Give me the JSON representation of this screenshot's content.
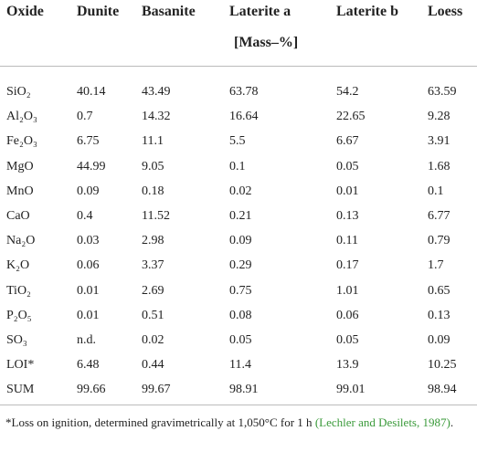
{
  "table": {
    "header": [
      "Oxide",
      "Dunite",
      "Basanite",
      "Laterite a",
      "Laterite b",
      "Loess"
    ],
    "unit": "[Mass–%]",
    "rows": [
      [
        "SiO₂",
        "40.14",
        "43.49",
        "63.78",
        "54.2",
        "63.59"
      ],
      [
        "Al₂O₃",
        "0.7",
        "14.32",
        "16.64",
        "22.65",
        "9.28"
      ],
      [
        "Fe₂O₃",
        "6.75",
        "11.1",
        "5.5",
        "6.67",
        "3.91"
      ],
      [
        "MgO",
        "44.99",
        "9.05",
        "0.1",
        "0.05",
        "1.68"
      ],
      [
        "MnO",
        "0.09",
        "0.18",
        "0.02",
        "0.01",
        "0.1"
      ],
      [
        "CaO",
        "0.4",
        "11.52",
        "0.21",
        "0.13",
        "6.77"
      ],
      [
        "Na₂O",
        "0.03",
        "2.98",
        "0.09",
        "0.11",
        "0.79"
      ],
      [
        "K₂O",
        "0.06",
        "3.37",
        "0.29",
        "0.17",
        "1.7"
      ],
      [
        "TiO₂",
        "0.01",
        "2.69",
        "0.75",
        "1.01",
        "0.65"
      ],
      [
        "P₂O₅",
        "0.01",
        "0.51",
        "0.08",
        "0.06",
        "0.13"
      ],
      [
        "SO₃",
        "n.d.",
        "0.02",
        "0.05",
        "0.05",
        "0.09"
      ],
      [
        "LOI*",
        "6.48",
        "0.44",
        "11.4",
        "13.9",
        "10.25"
      ],
      [
        "SUM",
        "99.66",
        "99.67",
        "98.91",
        "99.01",
        "98.94"
      ]
    ]
  },
  "footnote": {
    "text": "*Loss on ignition, determined gravimetrically at 1,050°C for 1 h",
    "citation": "(Lechler and Desilets, 1987)",
    "end": "."
  }
}
